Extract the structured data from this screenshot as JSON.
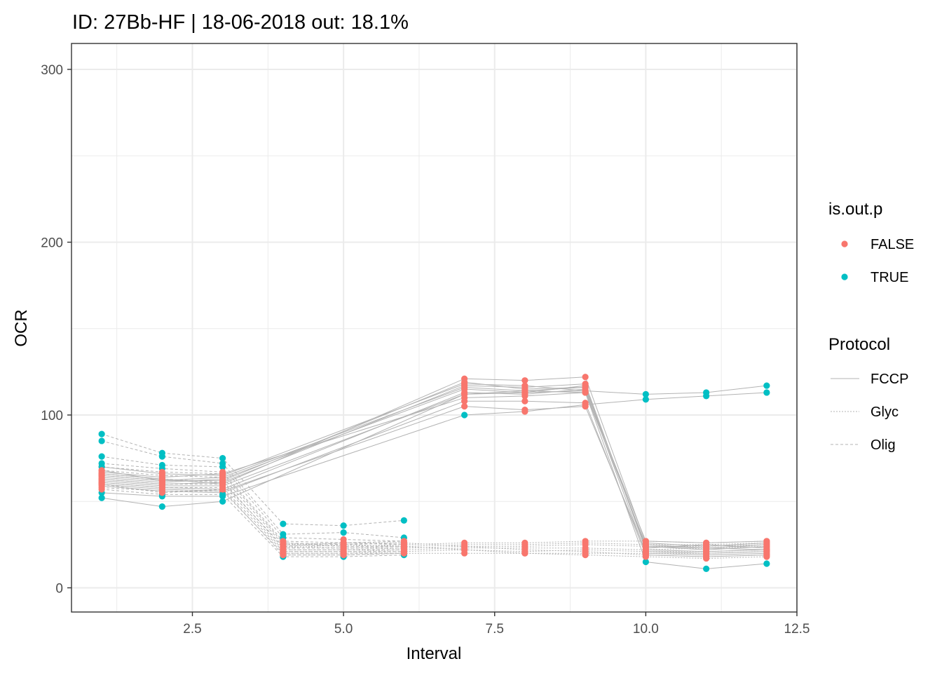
{
  "chart_data": {
    "type": "line",
    "title": "ID: 27Bb-HF | 18-06-2018  out: 18.1%",
    "xlabel": "Interval",
    "ylabel": "OCR",
    "xlim": [
      0.5,
      12.5
    ],
    "ylim": [
      -14,
      315
    ],
    "x_ticks": [
      2.5,
      5.0,
      7.5,
      10.0,
      12.5
    ],
    "x_tick_labels": [
      "2.5",
      "5.0",
      "7.5",
      "10.0",
      "12.5"
    ],
    "y_ticks": [
      0,
      100,
      200,
      300
    ],
    "y_tick_labels": [
      "0",
      "100",
      "200",
      "300"
    ],
    "grid": true,
    "legend_position": "right",
    "colors": {
      "FALSE": "#f8766d",
      "TRUE": "#00bfc4",
      "line": "#b3b3b3",
      "grid": "#ebebeb",
      "panel_border": "#333333"
    },
    "legends": {
      "color": {
        "title": "is.out.p",
        "entries": [
          "FALSE",
          "TRUE"
        ]
      },
      "linetype": {
        "title": "Protocol",
        "entries": [
          "FCCP",
          "Glyc",
          "Olig"
        ]
      }
    },
    "series": [
      {
        "protocol": "FCCP",
        "x": [
          1,
          2,
          3,
          7,
          8,
          9,
          10,
          11,
          12
        ],
        "y": [
          68,
          62,
          62,
          119,
          115,
          116,
          24,
          22,
          24
        ],
        "out": [
          false,
          false,
          false,
          false,
          false,
          false,
          false,
          false,
          false
        ]
      },
      {
        "protocol": "FCCP",
        "x": [
          1,
          2,
          3,
          7,
          8,
          9,
          10,
          11,
          12
        ],
        "y": [
          66,
          63,
          60,
          121,
          120,
          122,
          26,
          24,
          26
        ],
        "out": [
          false,
          false,
          false,
          false,
          false,
          false,
          false,
          false,
          false
        ]
      },
      {
        "protocol": "FCCP",
        "x": [
          1,
          2,
          3,
          7,
          8,
          9,
          10,
          11,
          12
        ],
        "y": [
          63,
          60,
          61,
          117,
          116,
          118,
          22,
          21,
          22
        ],
        "out": [
          false,
          false,
          false,
          false,
          false,
          false,
          false,
          false,
          false
        ]
      },
      {
        "protocol": "FCCP",
        "x": [
          1,
          2,
          3,
          7,
          8,
          9,
          10,
          11,
          12
        ],
        "y": [
          61,
          58,
          57,
          113,
          112,
          115,
          20,
          19,
          20
        ],
        "out": [
          false,
          false,
          false,
          false,
          false,
          false,
          false,
          false,
          false
        ]
      },
      {
        "protocol": "FCCP",
        "x": [
          1,
          2,
          3,
          7,
          8,
          9,
          10,
          11,
          12
        ],
        "y": [
          64,
          61,
          63,
          115,
          113,
          117,
          23,
          25,
          23
        ],
        "out": [
          false,
          false,
          false,
          false,
          false,
          false,
          false,
          false,
          false
        ]
      },
      {
        "protocol": "FCCP",
        "x": [
          1,
          2,
          3,
          7,
          8,
          9,
          10,
          11,
          12
        ],
        "y": [
          67,
          64,
          66,
          110,
          111,
          113,
          25,
          23,
          25
        ],
        "out": [
          false,
          false,
          false,
          false,
          false,
          false,
          false,
          false,
          false
        ]
      },
      {
        "protocol": "FCCP",
        "x": [
          1,
          2,
          3,
          7,
          8,
          9,
          10,
          11,
          12
        ],
        "y": [
          60,
          57,
          56,
          105,
          103,
          105,
          21,
          20,
          21
        ],
        "out": [
          false,
          false,
          false,
          false,
          false,
          false,
          false,
          false,
          false
        ]
      },
      {
        "protocol": "FCCP",
        "x": [
          1,
          2,
          3,
          7,
          8,
          9,
          10,
          11,
          12
        ],
        "y": [
          59,
          56,
          55,
          108,
          108,
          107,
          19,
          18,
          19
        ],
        "out": [
          false,
          false,
          false,
          false,
          false,
          false,
          false,
          false,
          false
        ]
      },
      {
        "protocol": "FCCP",
        "x": [
          1,
          2,
          3,
          7,
          8,
          9,
          10,
          11,
          12
        ],
        "y": [
          70,
          66,
          65,
          118,
          117,
          114,
          27,
          26,
          27
        ],
        "out": [
          false,
          false,
          false,
          false,
          false,
          false,
          false,
          false,
          false
        ]
      },
      {
        "protocol": "FCCP",
        "x": [
          1,
          2,
          3,
          7,
          8,
          9,
          10,
          11,
          12
        ],
        "y": [
          55,
          53,
          53,
          100,
          102,
          106,
          109,
          111,
          113
        ],
        "out": [
          true,
          true,
          true,
          true,
          false,
          false,
          true,
          true,
          true
        ]
      },
      {
        "protocol": "FCCP",
        "x": [
          1,
          2,
          3,
          7,
          8,
          9,
          10,
          11,
          12
        ],
        "y": [
          52,
          47,
          50,
          112,
          113,
          114,
          112,
          113,
          117
        ],
        "out": [
          true,
          true,
          true,
          false,
          false,
          false,
          true,
          true,
          true
        ]
      },
      {
        "protocol": "FCCP",
        "x": [
          1,
          2,
          3,
          7,
          8,
          9,
          10,
          11,
          12
        ],
        "y": [
          62,
          59,
          59,
          112,
          114,
          113,
          15,
          11,
          14
        ],
        "out": [
          false,
          false,
          false,
          false,
          false,
          false,
          true,
          true,
          true
        ]
      },
      {
        "protocol": "FCCP",
        "x": [
          1,
          2,
          3,
          7,
          8,
          9,
          10,
          11,
          12
        ],
        "y": [
          65,
          62,
          64,
          116,
          114,
          116,
          24,
          23,
          22
        ],
        "out": [
          false,
          false,
          false,
          false,
          false,
          false,
          false,
          false,
          false
        ]
      },
      {
        "protocol": "Olig",
        "x": [
          1,
          2,
          3,
          4,
          5,
          6
        ],
        "y": [
          89,
          78,
          75,
          37,
          36,
          39
        ],
        "out": [
          true,
          true,
          true,
          true,
          true,
          true
        ]
      },
      {
        "protocol": "Olig",
        "x": [
          1,
          2,
          3,
          4,
          5,
          6
        ],
        "y": [
          85,
          76,
          72,
          31,
          32,
          29
        ],
        "out": [
          true,
          true,
          true,
          true,
          true,
          true
        ]
      },
      {
        "protocol": "Olig",
        "x": [
          1,
          2,
          3,
          4,
          5,
          6
        ],
        "y": [
          76,
          71,
          70,
          29,
          28,
          27
        ],
        "out": [
          true,
          true,
          true,
          true,
          false,
          false
        ]
      },
      {
        "protocol": "Olig",
        "x": [
          1,
          2,
          3,
          4,
          5,
          6
        ],
        "y": [
          72,
          69,
          67,
          27,
          26,
          25
        ],
        "out": [
          true,
          true,
          false,
          false,
          false,
          false
        ]
      },
      {
        "protocol": "Olig",
        "x": [
          1,
          2,
          3,
          4,
          5,
          6
        ],
        "y": [
          70,
          67,
          66,
          26,
          25,
          26
        ],
        "out": [
          true,
          false,
          false,
          false,
          false,
          false
        ]
      },
      {
        "protocol": "Olig",
        "x": [
          1,
          2,
          3,
          4,
          5,
          6
        ],
        "y": [
          68,
          65,
          64,
          25,
          24,
          24
        ],
        "out": [
          false,
          false,
          false,
          false,
          false,
          false
        ]
      },
      {
        "protocol": "Olig",
        "x": [
          1,
          2,
          3,
          4,
          5,
          6
        ],
        "y": [
          65,
          62,
          62,
          23,
          23,
          23
        ],
        "out": [
          false,
          false,
          false,
          false,
          false,
          false
        ]
      },
      {
        "protocol": "Olig",
        "x": [
          1,
          2,
          3,
          4,
          5,
          6
        ],
        "y": [
          63,
          60,
          60,
          22,
          22,
          22
        ],
        "out": [
          false,
          false,
          false,
          false,
          false,
          false
        ]
      },
      {
        "protocol": "Olig",
        "x": [
          1,
          2,
          3,
          4,
          5,
          6
        ],
        "y": [
          61,
          58,
          58,
          21,
          21,
          21
        ],
        "out": [
          false,
          false,
          false,
          false,
          false,
          false
        ]
      },
      {
        "protocol": "Olig",
        "x": [
          1,
          2,
          3,
          4,
          5,
          6
        ],
        "y": [
          58,
          56,
          56,
          20,
          20,
          20
        ],
        "out": [
          false,
          false,
          false,
          false,
          false,
          false
        ]
      },
      {
        "protocol": "Olig",
        "x": [
          1,
          2,
          3,
          4,
          5,
          6
        ],
        "y": [
          57,
          54,
          54,
          18,
          18,
          19
        ],
        "out": [
          false,
          true,
          true,
          true,
          true,
          true
        ]
      },
      {
        "protocol": "Olig",
        "x": [
          1,
          2,
          3,
          4,
          5,
          6
        ],
        "y": [
          60,
          55,
          57,
          19,
          19,
          20
        ],
        "out": [
          false,
          false,
          false,
          false,
          false,
          false
        ]
      },
      {
        "protocol": "Olig",
        "x": [
          1,
          2,
          3,
          4,
          5,
          6
        ],
        "y": [
          66,
          63,
          61,
          24,
          26,
          27
        ],
        "out": [
          false,
          false,
          false,
          false,
          false,
          false
        ]
      },
      {
        "protocol": "Glyc",
        "x": [
          4,
          5,
          6,
          7,
          8,
          9,
          10,
          11,
          12
        ],
        "y": [
          26,
          24,
          25,
          26,
          26,
          27,
          27,
          26,
          27
        ],
        "out": [
          false,
          false,
          false,
          false,
          false,
          false,
          false,
          false,
          false
        ]
      },
      {
        "protocol": "Glyc",
        "x": [
          4,
          5,
          6,
          7,
          8,
          9,
          10,
          11,
          12
        ],
        "y": [
          24,
          23,
          24,
          25,
          25,
          26,
          25,
          25,
          26
        ],
        "out": [
          false,
          false,
          false,
          false,
          false,
          false,
          false,
          false,
          false
        ]
      },
      {
        "protocol": "Glyc",
        "x": [
          4,
          5,
          6,
          7,
          8,
          9,
          10,
          11,
          12
        ],
        "y": [
          22,
          22,
          23,
          24,
          24,
          25,
          24,
          24,
          25
        ],
        "out": [
          false,
          false,
          false,
          false,
          false,
          false,
          false,
          false,
          false
        ]
      },
      {
        "protocol": "Glyc",
        "x": [
          4,
          5,
          6,
          7,
          8,
          9,
          10,
          11,
          12
        ],
        "y": [
          21,
          21,
          22,
          23,
          23,
          23,
          22,
          23,
          24
        ],
        "out": [
          false,
          false,
          false,
          false,
          false,
          false,
          false,
          false,
          false
        ]
      },
      {
        "protocol": "Glyc",
        "x": [
          4,
          5,
          6,
          7,
          8,
          9,
          10,
          11,
          12
        ],
        "y": [
          20,
          20,
          21,
          22,
          21,
          22,
          21,
          21,
          22
        ],
        "out": [
          false,
          false,
          false,
          false,
          false,
          false,
          false,
          false,
          false
        ]
      },
      {
        "protocol": "Glyc",
        "x": [
          4,
          5,
          6,
          7,
          8,
          9,
          10,
          11,
          12
        ],
        "y": [
          19,
          19,
          20,
          20,
          20,
          20,
          20,
          20,
          21
        ],
        "out": [
          false,
          false,
          false,
          false,
          false,
          false,
          false,
          false,
          false
        ]
      },
      {
        "protocol": "Glyc",
        "x": [
          4,
          5,
          6,
          7,
          8,
          9,
          10,
          11,
          12
        ],
        "y": [
          25,
          26,
          26,
          24,
          22,
          21,
          19,
          18,
          19
        ],
        "out": [
          false,
          false,
          false,
          false,
          false,
          false,
          false,
          false,
          false
        ]
      },
      {
        "protocol": "Glyc",
        "x": [
          4,
          5,
          6,
          7,
          8,
          9,
          10,
          11,
          12
        ],
        "y": [
          23,
          25,
          24,
          22,
          20,
          19,
          18,
          17,
          18
        ],
        "out": [
          false,
          false,
          false,
          false,
          false,
          false,
          false,
          false,
          false
        ]
      }
    ]
  }
}
